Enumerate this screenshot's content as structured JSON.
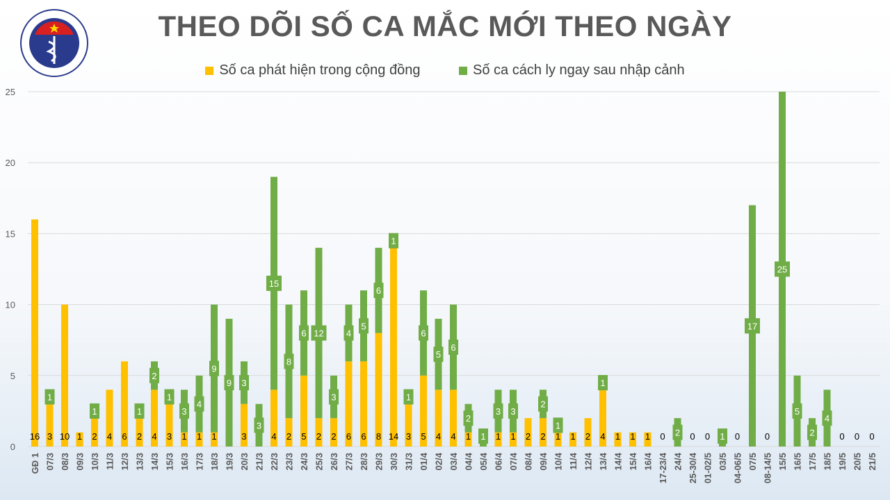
{
  "title": "THEO DÕI SỐ CA MẮC MỚI THEO NGÀY",
  "logo": {
    "top_text": "BỘ Y TẾ",
    "bottom_text": "MINISTRY OF HEALTH"
  },
  "chart_data": {
    "type": "bar",
    "stacked": true,
    "title": "THEO DÕI SỐ CA MẮC MỚI THEO NGÀY",
    "xlabel": "",
    "ylabel": "",
    "ylim": [
      0,
      25
    ],
    "yticks": [
      0,
      5,
      10,
      15,
      20,
      25
    ],
    "grid": true,
    "legend_position": "top",
    "categories": [
      "GĐ 1",
      "07/3",
      "08/3",
      "09/3",
      "10/3",
      "11/3",
      "12/3",
      "13/3",
      "14/3",
      "15/3",
      "16/3",
      "17/3",
      "18/3",
      "19/3",
      "20/3",
      "21/3",
      "22/3",
      "23/3",
      "24/3",
      "25/3",
      "26/3",
      "27/3",
      "28/3",
      "29/3",
      "30/3",
      "31/3",
      "01/4",
      "02/4",
      "03/4",
      "04/4",
      "05/4",
      "06/4",
      "07/4",
      "08/4",
      "09/4",
      "10/4",
      "11/4",
      "12/4",
      "13/4",
      "14/4",
      "15/4",
      "16/4",
      "17-23/4",
      "24/4",
      "25-30/4",
      "01-02/5",
      "03/5",
      "04-06/5",
      "07/5",
      "08-14/5",
      "15/5",
      "16/5",
      "17/5",
      "18/5",
      "19/5",
      "20/5",
      "21/5"
    ],
    "series": [
      {
        "name": "Số ca phát hiện trong cộng đồng",
        "color": "#FFC000",
        "values": [
          16,
          3,
          10,
          1,
          2,
          4,
          6,
          2,
          4,
          3,
          1,
          1,
          1,
          0,
          3,
          0,
          4,
          2,
          5,
          2,
          2,
          6,
          6,
          8,
          14,
          3,
          5,
          4,
          4,
          1,
          0,
          1,
          1,
          2,
          2,
          1,
          1,
          2,
          4,
          1,
          1,
          1,
          0,
          0,
          0,
          0,
          0,
          0,
          0,
          0,
          0,
          0,
          0,
          0,
          0,
          0,
          0
        ]
      },
      {
        "name": "Số ca cách ly ngay sau nhập cảnh",
        "color": "#70AD47",
        "values": [
          0,
          1,
          0,
          0,
          1,
          0,
          0,
          1,
          2,
          1,
          3,
          4,
          9,
          9,
          3,
          3,
          15,
          8,
          6,
          12,
          3,
          4,
          5,
          6,
          1,
          1,
          6,
          5,
          6,
          2,
          1,
          3,
          3,
          0,
          2,
          1,
          0,
          0,
          1,
          0,
          0,
          0,
          0,
          2,
          0,
          0,
          1,
          0,
          17,
          0,
          25,
          5,
          2,
          4,
          0,
          0,
          0
        ]
      }
    ]
  }
}
